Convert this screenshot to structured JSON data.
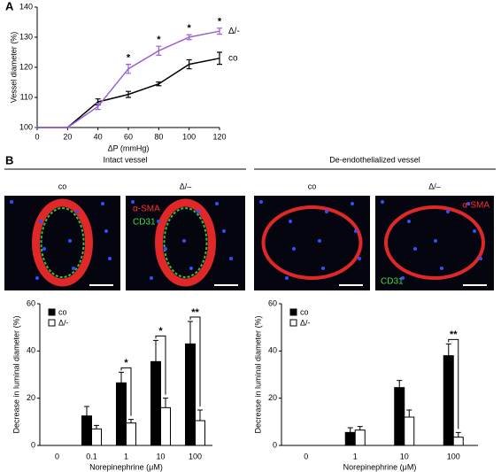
{
  "panel_labels": [
    "A",
    "B"
  ],
  "chart_data": [
    {
      "type": "line",
      "xlabel": "ΔP (mmHg)",
      "ylabel": "Vessel diameter (%)",
      "x": [
        0,
        20,
        40,
        60,
        80,
        100,
        120
      ],
      "xlim": [
        0,
        120
      ],
      "xticks": [
        0,
        20,
        40,
        60,
        80,
        100,
        120
      ],
      "ylim": [
        100,
        140
      ],
      "yticks": [
        100,
        110,
        120,
        130,
        140
      ],
      "series": [
        {
          "name": "co",
          "color": "#000000",
          "values": [
            100,
            100,
            108.5,
            111,
            114.5,
            121,
            123
          ],
          "errors": [
            0,
            0,
            1,
            1,
            0.6,
            1.5,
            2
          ]
        },
        {
          "name": "Δ/-",
          "color": "#9b5fd6",
          "values": [
            100,
            100,
            107,
            119.5,
            125.5,
            130,
            132
          ],
          "errors": [
            0,
            0,
            1,
            1.5,
            1.5,
            0.8,
            1
          ]
        }
      ],
      "annotations": [
        {
          "text": "*",
          "x": 60
        },
        {
          "text": "*",
          "x": 80
        },
        {
          "text": "*",
          "x": 100
        },
        {
          "text": "*",
          "x": 120
        }
      ]
    },
    {
      "type": "bar",
      "xlabel": "Norepinephrine (μM)",
      "ylabel": "Decrease in luminal diameter (%)",
      "categories": [
        "0",
        "0.1",
        "1",
        "10",
        "100"
      ],
      "ylim": [
        0,
        60
      ],
      "yticks": [
        0,
        20,
        40,
        60
      ],
      "legend": "upper left",
      "series": [
        {
          "name": "co",
          "color": "#000000",
          "values": [
            null,
            12.5,
            26.5,
            35.5,
            43
          ],
          "errors": [
            null,
            4,
            4.5,
            9,
            9.5
          ]
        },
        {
          "name": "Δ/-",
          "color": "#ffffff",
          "values": [
            null,
            7,
            9.5,
            16,
            10.5
          ],
          "errors": [
            null,
            1.5,
            1.5,
            4,
            4.5
          ]
        }
      ],
      "annotations": [
        {
          "text": "*",
          "x": "1"
        },
        {
          "text": "*",
          "x": "10"
        },
        {
          "text": "**",
          "x": "100"
        }
      ]
    },
    {
      "type": "bar",
      "xlabel": "Norepinephrine (μM)",
      "ylabel": "Decrease in luminal diameter (%)",
      "categories": [
        "0",
        "1",
        "10",
        "100"
      ],
      "ylim": [
        0,
        60
      ],
      "yticks": [
        0,
        20,
        40,
        60
      ],
      "legend": "upper left",
      "series": [
        {
          "name": "co",
          "color": "#000000",
          "values": [
            null,
            5.5,
            24.5,
            38
          ],
          "errors": [
            null,
            2,
            3,
            5
          ]
        },
        {
          "name": "Δ/-",
          "color": "#ffffff",
          "values": [
            null,
            6.5,
            12,
            3.5
          ],
          "errors": [
            null,
            1.5,
            3,
            2
          ]
        }
      ],
      "annotations": [
        {
          "text": "**",
          "x": "100"
        }
      ]
    }
  ],
  "micrographs": {
    "groups": [
      {
        "title": "Intact vessel",
        "panels": [
          {
            "label": "co",
            "stains": []
          },
          {
            "label": "Δ/–",
            "stains": [
              {
                "text": "α-SMA",
                "color": "#ff3030"
              },
              {
                "text": "CD31",
                "color": "#40e040"
              }
            ]
          }
        ]
      },
      {
        "title": "De-endothelialized vessel",
        "panels": [
          {
            "label": "co",
            "stains": []
          },
          {
            "label": "Δ/–",
            "stains": [
              {
                "text": "α-SMA",
                "color": "#ff3030"
              },
              {
                "text": "CD31",
                "color": "#40e040"
              }
            ]
          }
        ]
      }
    ]
  }
}
